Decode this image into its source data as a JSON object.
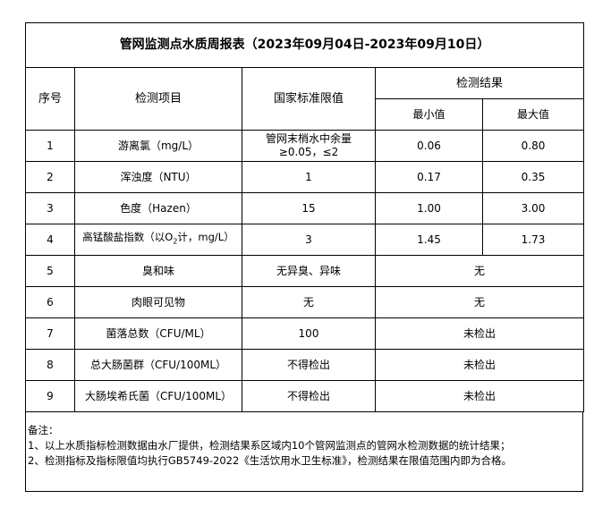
{
  "title": "管网监测点水质周报表（2023年09月04日-2023年09月10日）",
  "headers": {
    "no": "序号",
    "item": "检测项目",
    "limit": "国家标准限值",
    "result": "检测结果",
    "min": "最小值",
    "max": "最大值"
  },
  "rows": [
    {
      "no": "1",
      "item": "游离氯（mg/L）",
      "limit": "管网末梢水中余量≥0.05，≤2",
      "min": "0.06",
      "max": "0.80"
    },
    {
      "no": "2",
      "item": "浑浊度（NTU）",
      "limit": "1",
      "min": "0.17",
      "max": "0.35"
    },
    {
      "no": "3",
      "item": "色度（Hazen）",
      "limit": "15",
      "min": "1.00",
      "max": "3.00"
    },
    {
      "no": "4",
      "item_pre": "高锰酸盐指数（以O",
      "item_sub": "2",
      "item_post": "计，mg/L）",
      "limit": "3",
      "min": "1.45",
      "max": "1.73"
    },
    {
      "no": "5",
      "item": "臭和味",
      "limit": "无异臭、异味",
      "result": "无"
    },
    {
      "no": "6",
      "item": "肉眼可见物",
      "limit": "无",
      "result": "无"
    },
    {
      "no": "7",
      "item": "菌落总数（CFU/ML）",
      "limit": "100",
      "result": "未检出"
    },
    {
      "no": "8",
      "item": "总大肠菌群（CFU/100ML）",
      "limit": "不得检出",
      "result": "未检出"
    },
    {
      "no": "9",
      "item": "大肠埃希氏菌（CFU/100ML）",
      "limit": "不得检出",
      "result": "未检出"
    }
  ],
  "notes": {
    "label": "备注：",
    "lines": [
      "1、以上水质指标检测数据由水厂提供，检测结果系区域内10个管网监测点的管网水检测数据的统计结果；",
      "2、检测指标及指标限值均执行GB5749-2022《生活饮用水卫生标准》，检测结果在限值范围内即为合格。"
    ]
  }
}
